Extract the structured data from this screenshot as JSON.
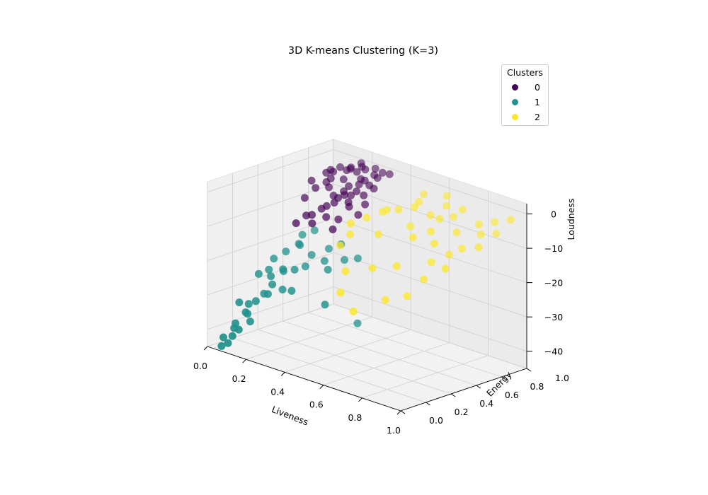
{
  "chart_data": {
    "type": "scatter",
    "projection": "3d",
    "title": "3D K-means Clustering (K=3)",
    "xlabel": "Liveness",
    "ylabel": "Energy",
    "zlabel": "Loudness",
    "xlim": [
      0.0,
      1.0
    ],
    "ylim": [
      0.0,
      1.0
    ],
    "zlim": [
      -45,
      3
    ],
    "xticks": [
      "0.0",
      "0.2",
      "0.4",
      "0.6",
      "0.8",
      "1.0"
    ],
    "yticks": [
      "0.0",
      "0.2",
      "0.4",
      "0.6",
      "0.8",
      "1.0"
    ],
    "zticks": [
      "0",
      "−10",
      "−20",
      "−30",
      "−40"
    ],
    "grid": true,
    "legend": {
      "title": "Clusters",
      "placement": "top-right",
      "entries": [
        "0",
        "1",
        "2"
      ]
    },
    "series": [
      {
        "name": "0",
        "color": "#440154",
        "x": [
          0.05,
          0.08,
          0.1,
          0.12,
          0.15,
          0.18,
          0.2,
          0.22,
          0.25,
          0.28,
          0.3,
          0.32,
          0.06,
          0.09,
          0.11,
          0.14,
          0.17,
          0.19,
          0.21,
          0.24,
          0.27,
          0.29,
          0.31,
          0.33,
          0.07,
          0.1,
          0.13,
          0.16,
          0.18,
          0.2,
          0.23,
          0.26,
          0.28,
          0.3,
          0.12,
          0.15,
          0.18,
          0.21,
          0.24,
          0.27,
          0.1,
          0.14,
          0.19,
          0.23,
          0.26,
          0.09,
          0.13,
          0.17,
          0.22,
          0.25
        ],
        "y": [
          0.75,
          0.82,
          0.9,
          0.78,
          0.85,
          0.95,
          0.7,
          0.88,
          0.8,
          0.92,
          0.86,
          0.76,
          0.68,
          0.72,
          0.81,
          0.89,
          0.74,
          0.83,
          0.93,
          0.77,
          0.71,
          0.84,
          0.97,
          0.69,
          0.87,
          0.79,
          0.94,
          0.66,
          0.91,
          0.73,
          0.85,
          0.64,
          0.96,
          0.78,
          0.6,
          0.99,
          0.67,
          0.62,
          0.88,
          0.58,
          0.55,
          0.92,
          0.79,
          0.98,
          0.72,
          0.86,
          0.63,
          0.57,
          0.75,
          0.94
        ],
        "z": [
          -5,
          -3,
          -2,
          -6,
          -4,
          -1,
          -8,
          -3,
          -5,
          -2,
          -4,
          -7,
          -9,
          -6,
          -4,
          -2,
          -7,
          -5,
          -1,
          -6,
          -8,
          -3,
          -1,
          -9,
          -3,
          -5,
          -2,
          -10,
          -2,
          -7,
          -4,
          -11,
          -1,
          -5,
          -12,
          -1,
          -9,
          -11,
          -3,
          -13,
          -14,
          -2,
          -6,
          -1,
          -7,
          -3,
          -12,
          -13,
          -6,
          -2
        ]
      },
      {
        "name": "1",
        "color": "#21918c",
        "x": [
          0.05,
          0.08,
          0.1,
          0.12,
          0.15,
          0.06,
          0.09,
          0.11,
          0.14,
          0.07,
          0.1,
          0.13,
          0.05,
          0.08,
          0.12,
          0.16,
          0.2,
          0.25,
          0.3,
          0.35,
          0.06,
          0.09,
          0.11,
          0.07,
          0.13,
          0.18,
          0.22,
          0.28,
          0.1,
          0.15,
          0.19,
          0.24,
          0.33,
          0.4,
          0.08,
          0.12,
          0.06,
          0.05,
          0.38,
          0.45
        ],
        "y": [
          0.05,
          0.1,
          0.15,
          0.2,
          0.25,
          0.12,
          0.18,
          0.08,
          0.3,
          0.22,
          0.35,
          0.4,
          0.45,
          0.5,
          0.55,
          0.48,
          0.52,
          0.58,
          0.6,
          0.55,
          0.02,
          0.06,
          0.28,
          0.38,
          0.14,
          0.32,
          0.44,
          0.5,
          0.6,
          0.62,
          0.4,
          0.3,
          0.45,
          0.58,
          0.04,
          0.42,
          0.16,
          0.33,
          0.35,
          0.5
        ],
        "z": [
          -42,
          -38,
          -35,
          -32,
          -30,
          -40,
          -36,
          -39,
          -28,
          -34,
          -27,
          -25,
          -24,
          -22,
          -20,
          -18,
          -21,
          -19,
          -17,
          -20,
          -44,
          -41,
          -31,
          -26,
          -37,
          -29,
          -23,
          -21,
          -18,
          -16,
          -24,
          -28,
          -22,
          -19,
          -43,
          -26,
          -33,
          -27,
          -30,
          -36
        ]
      },
      {
        "name": "2",
        "color": "#fde725",
        "x": [
          0.35,
          0.4,
          0.45,
          0.5,
          0.55,
          0.6,
          0.65,
          0.7,
          0.75,
          0.8,
          0.85,
          0.9,
          0.95,
          0.38,
          0.42,
          0.48,
          0.52,
          0.58,
          0.62,
          0.68,
          0.72,
          0.78,
          0.82,
          0.88,
          0.92,
          0.36,
          0.44,
          0.54,
          0.64,
          0.74,
          0.84,
          0.94,
          0.46,
          0.56,
          0.66,
          0.76,
          0.86,
          0.5,
          0.6,
          0.7
        ],
        "y": [
          0.6,
          0.65,
          0.7,
          0.75,
          0.8,
          0.85,
          0.9,
          0.7,
          0.65,
          0.75,
          0.85,
          0.9,
          0.95,
          0.55,
          0.78,
          0.62,
          0.88,
          0.72,
          0.68,
          0.8,
          0.92,
          0.58,
          0.66,
          0.82,
          0.74,
          0.5,
          0.42,
          0.48,
          0.52,
          0.45,
          0.6,
          0.85,
          0.35,
          0.3,
          0.4,
          0.55,
          0.7,
          0.95,
          0.98,
          0.88
        ],
        "z": [
          -10,
          -8,
          -6,
          -5,
          -4,
          -6,
          -3,
          -7,
          -9,
          -6,
          -4,
          -3,
          -2,
          -12,
          -7,
          -11,
          -4,
          -8,
          -10,
          -5,
          -3,
          -13,
          -11,
          -6,
          -8,
          -15,
          -20,
          -18,
          -16,
          -22,
          -14,
          -5,
          -25,
          -28,
          -24,
          -18,
          -9,
          -3,
          -2,
          -5
        ]
      }
    ]
  }
}
